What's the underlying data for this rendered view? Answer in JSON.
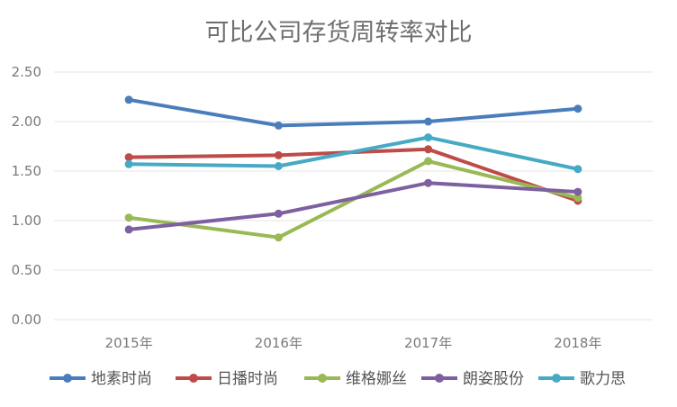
{
  "chart_data": {
    "type": "line",
    "title": "可比公司存货周转率对比",
    "xlabel": "",
    "ylabel": "",
    "categories": [
      "2015年",
      "2016年",
      "2017年",
      "2018年"
    ],
    "ylim": [
      0,
      2.5
    ],
    "yticks": [
      "0.00",
      "0.50",
      "1.00",
      "1.50",
      "2.00",
      "2.50"
    ],
    "grid": true,
    "legend": "bottom",
    "series": [
      {
        "name": "地素时尚",
        "color": "#4a7ebb",
        "values": [
          2.22,
          1.96,
          2.0,
          2.13
        ]
      },
      {
        "name": "日播时尚",
        "color": "#be4b48",
        "values": [
          1.64,
          1.66,
          1.72,
          1.2
        ]
      },
      {
        "name": "维格娜丝",
        "color": "#98b954",
        "values": [
          1.03,
          0.83,
          1.6,
          1.23
        ]
      },
      {
        "name": "朗姿股份",
        "color": "#7d60a0",
        "values": [
          0.91,
          1.07,
          1.38,
          1.29
        ]
      },
      {
        "name": "歌力思",
        "color": "#46aac5",
        "values": [
          1.57,
          1.55,
          1.84,
          1.52
        ]
      }
    ]
  }
}
